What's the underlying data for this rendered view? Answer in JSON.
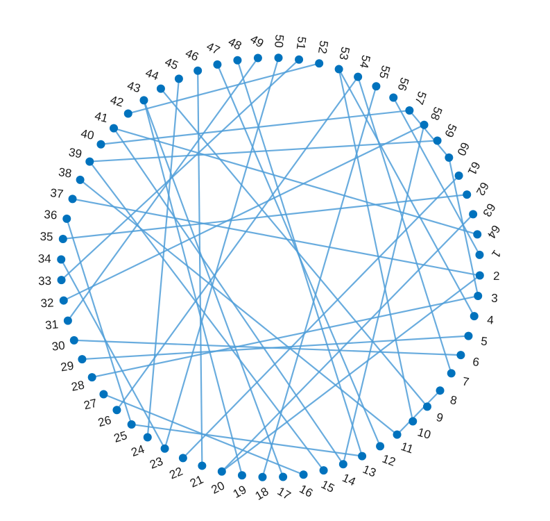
{
  "chart_data": {
    "type": "circular-graph",
    "node_color": "#0072BD",
    "edge_color": "#4F9ED8",
    "nodes": [
      "1",
      "2",
      "3",
      "4",
      "5",
      "6",
      "7",
      "8",
      "9",
      "10",
      "11",
      "12",
      "13",
      "14",
      "15",
      "16",
      "17",
      "18",
      "19",
      "20",
      "21",
      "22",
      "23",
      "24",
      "25",
      "26",
      "27",
      "28",
      "29",
      "30",
      "31",
      "32",
      "33",
      "34",
      "35",
      "36",
      "37",
      "38",
      "39",
      "40",
      "41",
      "42",
      "43",
      "44",
      "45",
      "46",
      "47",
      "48",
      "49",
      "50",
      "51",
      "52",
      "53",
      "54",
      "55",
      "56",
      "57",
      "58",
      "59",
      "60",
      "61",
      "62",
      "63",
      "64"
    ],
    "edges": [
      [
        16,
        27
      ],
      [
        18,
        55
      ],
      [
        14,
        58
      ],
      [
        15,
        39
      ],
      [
        12,
        47
      ],
      [
        21,
        46
      ],
      [
        19,
        43
      ],
      [
        22,
        61
      ],
      [
        23,
        50
      ],
      [
        28,
        3
      ],
      [
        30,
        6
      ],
      [
        32,
        58
      ],
      [
        35,
        62
      ],
      [
        39,
        59
      ],
      [
        37,
        2
      ],
      [
        33,
        51
      ],
      [
        26,
        54
      ],
      [
        17,
        43
      ],
      [
        13,
        48
      ],
      [
        31,
        49
      ],
      [
        11,
        8
      ],
      [
        11,
        38
      ],
      [
        40,
        57
      ],
      [
        36,
        25
      ],
      [
        34,
        23
      ],
      [
        20,
        2
      ],
      [
        24,
        45
      ],
      [
        10,
        53
      ],
      [
        44,
        9
      ],
      [
        29,
        5
      ],
      [
        42,
        52
      ],
      [
        1,
        56
      ],
      [
        60,
        3
      ],
      [
        63,
        20
      ],
      [
        41,
        64
      ],
      [
        7,
        54
      ],
      [
        4,
        53
      ],
      [
        13,
        25
      ],
      [
        14,
        41
      ],
      [
        57,
        60
      ]
    ]
  }
}
